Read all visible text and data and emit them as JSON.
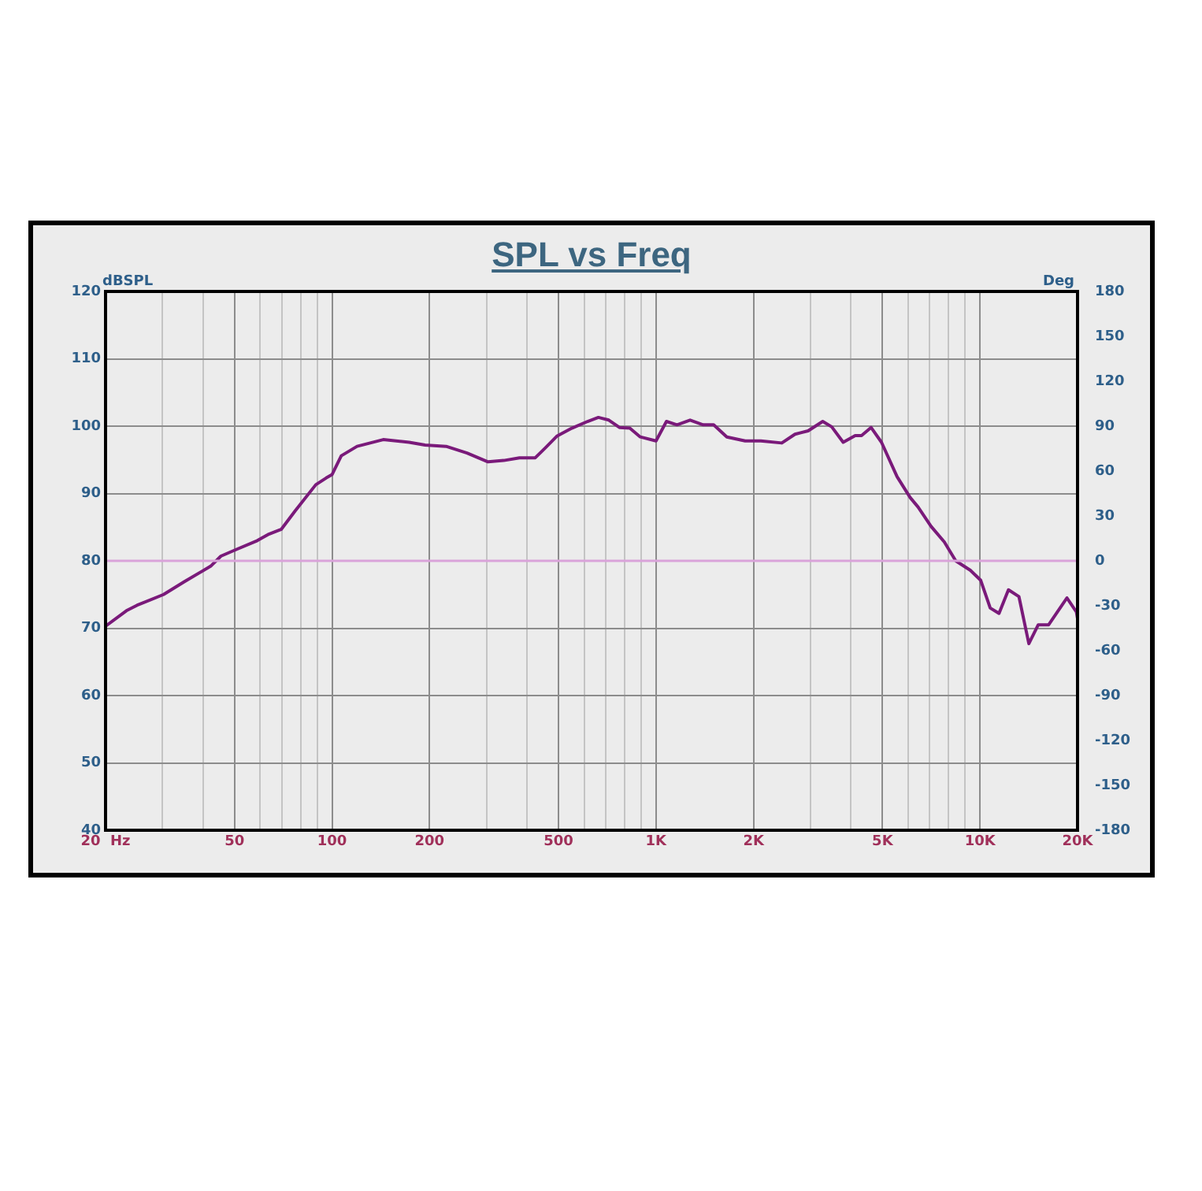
{
  "chart_data": {
    "type": "line",
    "title": "SPL vs Freq",
    "ylabel": "dBSPL",
    "y2label": "Deg",
    "x": [
      20,
      23.2,
      25,
      30.2,
      35,
      42.2,
      45.4,
      50.7,
      58.8,
      63.4,
      69.8,
      76.9,
      89.1,
      95.9,
      100,
      106.8,
      119.5,
      143.9,
      173,
      193.7,
      225,
      261,
      303,
      339,
      379,
      424,
      456,
      494,
      550,
      615,
      664,
      715,
      771,
      830,
      894,
      1000,
      1077,
      1161,
      1274,
      1398,
      1506,
      1654,
      1884,
      2106,
      2445,
      2685,
      2947,
      3270,
      3486,
      3782,
      4119,
      4308,
      4610,
      4965,
      5546,
      6087,
      6437,
      7066,
      7758,
      8416,
      9337,
      10052,
      10752,
      11446,
      12240,
      13186,
      14150,
      15128,
      16289,
      18547,
      19838,
      20000
    ],
    "series": [
      {
        "color": "#7a1a7a",
        "values": [
          70.3,
          72.6,
          73.4,
          75,
          76.9,
          79.2,
          80.7,
          81.7,
          83,
          83.9,
          84.7,
          87.4,
          91.3,
          92.3,
          92.8,
          95.6,
          97,
          98,
          97.6,
          97.2,
          97,
          96,
          94.7,
          94.9,
          95.3,
          95.3,
          96.8,
          98.5,
          99.7,
          100.7,
          101.3,
          100.9,
          99.8,
          99.7,
          98.4,
          97.8,
          100.7,
          100.2,
          100.9,
          100.2,
          100.2,
          98.4,
          97.8,
          97.8,
          97.5,
          98.8,
          99.3,
          100.7,
          99.9,
          97.6,
          98.6,
          98.6,
          99.8,
          97.6,
          92.5,
          89.4,
          88,
          85.1,
          82.8,
          80,
          78.6,
          77.1,
          73,
          72.2,
          75.7,
          74.7,
          67.7,
          70.5,
          70.5,
          74.5,
          72.4,
          71.4
        ]
      }
    ],
    "log": "x",
    "xlim": [
      20,
      20000
    ],
    "xticks": [
      {
        "value": 20,
        "label": "20  Hz"
      },
      {
        "value": 30,
        "label": null
      },
      {
        "value": 40,
        "label": null
      },
      50,
      {
        "value": 60,
        "label": null
      },
      {
        "value": 70,
        "label": null
      },
      {
        "value": 80,
        "label": null
      },
      {
        "value": 90,
        "label": null
      },
      100,
      200,
      {
        "value": 300,
        "label": null
      },
      {
        "value": 400,
        "label": null
      },
      500,
      {
        "value": 600,
        "label": null
      },
      {
        "value": 700,
        "label": null
      },
      {
        "value": 800,
        "label": null
      },
      {
        "value": 900,
        "label": null
      },
      {
        "value": 1000,
        "label": "1K"
      },
      {
        "value": 2000,
        "label": "2K"
      },
      {
        "value": 3000,
        "label": null
      },
      {
        "value": 4000,
        "label": null
      },
      {
        "value": 5000,
        "label": "5K"
      },
      {
        "value": 6000,
        "label": null
      },
      {
        "value": 7000,
        "label": null
      },
      {
        "value": 8000,
        "label": null
      },
      {
        "value": 9000,
        "label": null
      },
      {
        "value": 10000,
        "label": "10K"
      },
      {
        "value": 20000,
        "label": "20K"
      }
    ],
    "ylim": [
      40,
      120
    ],
    "yticks": [
      40,
      50,
      60,
      70,
      80,
      90,
      100,
      110,
      120
    ],
    "y2lim": [
      -180,
      180
    ],
    "y2ticks": [
      -180,
      -150,
      -120,
      -90,
      -60,
      -30,
      0,
      30,
      60,
      90,
      120,
      150,
      180
    ],
    "ref_lines": [
      {
        "axis": "y",
        "value": 80,
        "color": "#d9a3d9"
      }
    ],
    "grid": true,
    "legend": false,
    "marker": "none",
    "line_style": "solid"
  }
}
